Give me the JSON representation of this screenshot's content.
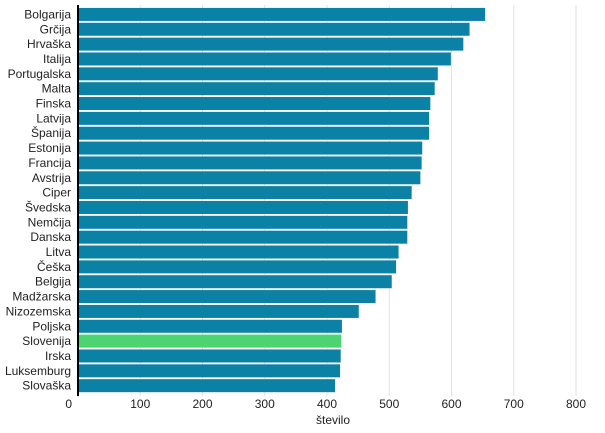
{
  "chart_data": {
    "type": "bar",
    "orientation": "horizontal",
    "categories": [
      "Bolgarija",
      "Grčija",
      "Hrvaška",
      "Italija",
      "Portugalska",
      "Malta",
      "Finska",
      "Latvija",
      "Španija",
      "Estonija",
      "Francija",
      "Avstrija",
      "Ciper",
      "Švedska",
      "Nemčija",
      "Danska",
      "Litva",
      "Češka",
      "Belgija",
      "Madžarska",
      "Nizozemska",
      "Poljska",
      "Slovenija",
      "Irska",
      "Luksemburg",
      "Slovaška"
    ],
    "values": [
      654,
      629,
      619,
      599,
      578,
      573,
      566,
      564,
      564,
      553,
      552,
      550,
      536,
      530,
      529,
      529,
      515,
      511,
      504,
      478,
      451,
      424,
      423,
      422,
      421,
      413
    ],
    "highlight": "Slovenija",
    "colors": {
      "default": "#0b81a6",
      "highlight": "#4dd472"
    },
    "xlabel": "število",
    "xlim": [
      0,
      800
    ],
    "xticks": [
      0,
      100,
      200,
      300,
      400,
      500,
      600,
      700,
      800
    ],
    "grid": "vertical"
  }
}
